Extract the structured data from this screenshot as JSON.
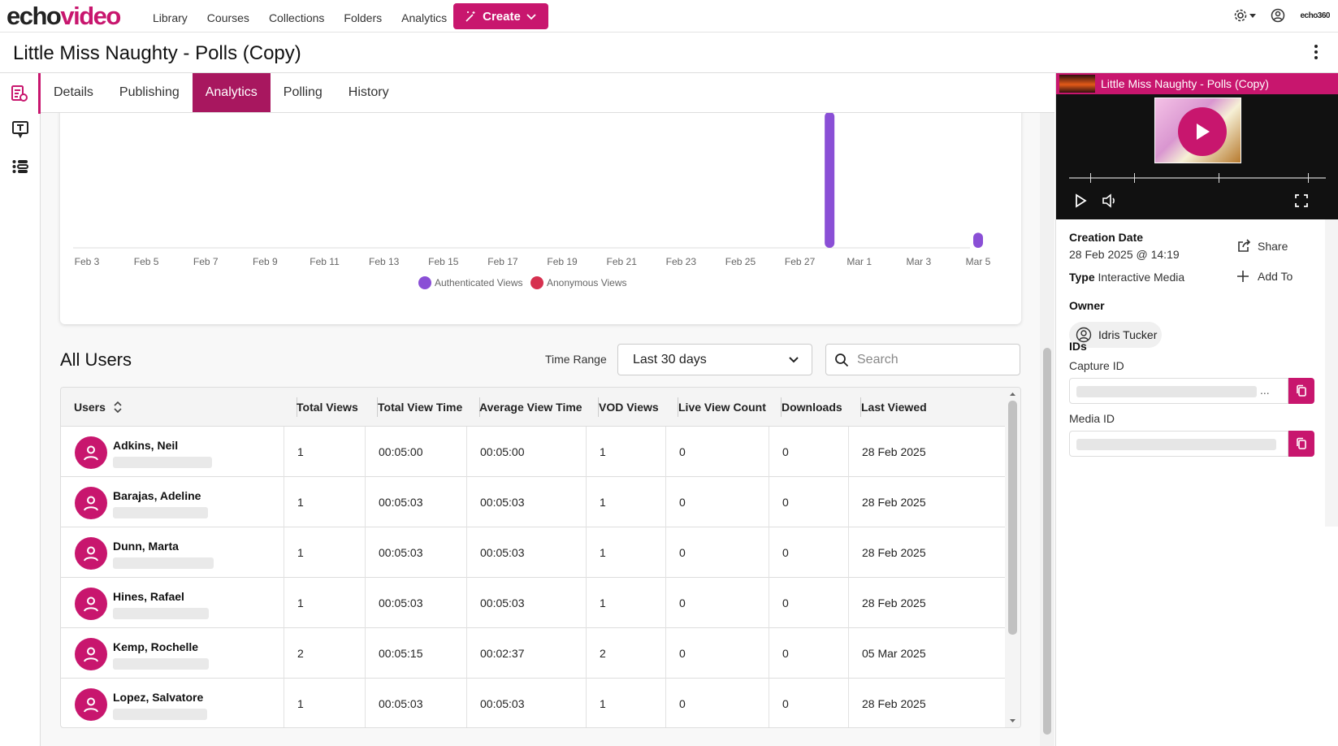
{
  "nav": {
    "logo_part1": "echo",
    "logo_part2": "video",
    "links": [
      "Library",
      "Courses",
      "Collections",
      "Folders",
      "Analytics"
    ],
    "create_label": "Create",
    "brand_small": "echo360"
  },
  "page": {
    "title": "Little Miss Naughty - Polls (Copy)"
  },
  "tabs": [
    "Details",
    "Publishing",
    "Analytics",
    "Polling",
    "History"
  ],
  "active_tab": "Analytics",
  "chart_data": {
    "type": "bar",
    "categories": [
      "Feb 3",
      "Feb 5",
      "Feb 7",
      "Feb 9",
      "Feb 11",
      "Feb 13",
      "Feb 15",
      "Feb 17",
      "Feb 19",
      "Feb 21",
      "Feb 23",
      "Feb 25",
      "Feb 27",
      "Mar 1",
      "Mar 3",
      "Mar 5"
    ],
    "x_dates": [
      "Feb 28",
      "Mar 5"
    ],
    "series": [
      {
        "name": "Authenticated Views",
        "color": "#8a4fd6",
        "points": [
          {
            "x": "Feb 28",
            "y": 9
          },
          {
            "x": "Mar 5",
            "y": 1
          }
        ]
      },
      {
        "name": "Anonymous Views",
        "color": "#d6304f",
        "points": []
      }
    ],
    "ylim": [
      0,
      10
    ],
    "grid": false,
    "legend": "bottom"
  },
  "users_section": {
    "title": "All Users",
    "time_range_label": "Time Range",
    "time_range_value": "Last 30 days",
    "search_placeholder": "Search"
  },
  "table": {
    "columns": [
      "Users",
      "Total Views",
      "Total View Time",
      "Average View Time",
      "VOD Views",
      "Live View Count",
      "Downloads",
      "Last Viewed"
    ],
    "rows": [
      {
        "name": "Adkins, Neil",
        "total_views": "1",
        "total_time": "00:05:00",
        "avg_time": "00:05:00",
        "vod": "1",
        "live": "0",
        "downloads": "0",
        "last": "28 Feb 2025"
      },
      {
        "name": "Barajas, Adeline",
        "total_views": "1",
        "total_time": "00:05:03",
        "avg_time": "00:05:03",
        "vod": "1",
        "live": "0",
        "downloads": "0",
        "last": "28 Feb 2025"
      },
      {
        "name": "Dunn, Marta",
        "total_views": "1",
        "total_time": "00:05:03",
        "avg_time": "00:05:03",
        "vod": "1",
        "live": "0",
        "downloads": "0",
        "last": "28 Feb 2025"
      },
      {
        "name": "Hines, Rafael",
        "total_views": "1",
        "total_time": "00:05:03",
        "avg_time": "00:05:03",
        "vod": "1",
        "live": "0",
        "downloads": "0",
        "last": "28 Feb 2025"
      },
      {
        "name": "Kemp, Rochelle",
        "total_views": "2",
        "total_time": "00:05:15",
        "avg_time": "00:02:37",
        "vod": "2",
        "live": "0",
        "downloads": "0",
        "last": "05 Mar 2025"
      },
      {
        "name": "Lopez, Salvatore",
        "total_views": "1",
        "total_time": "00:05:03",
        "avg_time": "00:05:03",
        "vod": "1",
        "live": "0",
        "downloads": "0",
        "last": "28 Feb 2025"
      }
    ]
  },
  "panel": {
    "player_title": "Little Miss Naughty - Polls (Copy)",
    "creation_label": "Creation Date",
    "creation_value": "28 Feb 2025 @ 14:19",
    "type_label": "Type",
    "type_value": "Interactive Media",
    "share_label": "Share",
    "addto_label": "Add To",
    "owner_label": "Owner",
    "owner_name": "Idris Tucker",
    "ids_label": "IDs",
    "capture_label": "Capture ID",
    "capture_ellipsis": "...",
    "media_label": "Media ID"
  },
  "colors": {
    "accent": "#c8166e",
    "tab_active": "#a8175f"
  }
}
